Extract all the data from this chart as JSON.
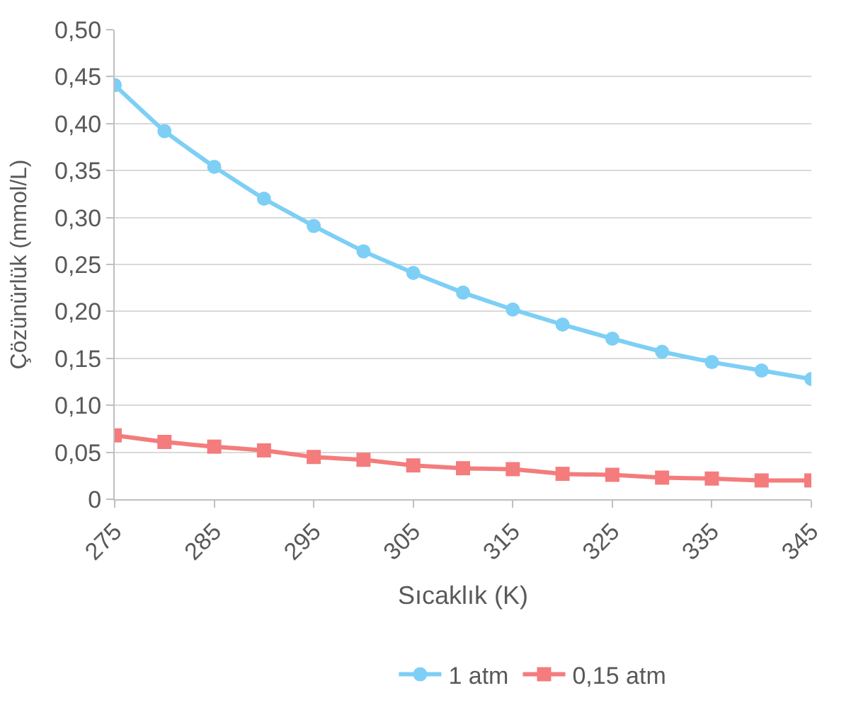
{
  "chart_data": {
    "type": "line",
    "xlabel": "Sıcaklık (K)",
    "ylabel": "Çözünürlük (mmol/L)",
    "x": [
      275,
      280,
      285,
      290,
      295,
      300,
      305,
      310,
      315,
      320,
      325,
      330,
      335,
      340,
      345
    ],
    "series": [
      {
        "name": "1 atm",
        "color": "#7dcff5",
        "marker": "circle",
        "values": [
          0.441,
          0.392,
          0.354,
          0.32,
          0.291,
          0.264,
          0.241,
          0.22,
          0.202,
          0.186,
          0.171,
          0.157,
          0.146,
          0.137,
          0.128
        ]
      },
      {
        "name": "0,15 atm",
        "color": "#f47c7c",
        "marker": "square",
        "values": [
          0.068,
          0.061,
          0.056,
          0.052,
          0.045,
          0.042,
          0.036,
          0.033,
          0.032,
          0.027,
          0.026,
          0.023,
          0.022,
          0.02,
          0.02
        ]
      }
    ],
    "xlim": [
      275,
      345
    ],
    "xticks": [
      275,
      285,
      295,
      305,
      315,
      325,
      335,
      345
    ],
    "ylim": [
      0,
      0.5
    ],
    "yticks": [
      {
        "value": 0,
        "label": "0"
      },
      {
        "value": 0.05,
        "label": "0,05"
      },
      {
        "value": 0.1,
        "label": "0,10"
      },
      {
        "value": 0.15,
        "label": "0,15"
      },
      {
        "value": 0.2,
        "label": "0,20"
      },
      {
        "value": 0.25,
        "label": "0,25"
      },
      {
        "value": 0.3,
        "label": "0,30"
      },
      {
        "value": 0.35,
        "label": "0,35"
      },
      {
        "value": 0.4,
        "label": "0,40"
      },
      {
        "value": 0.45,
        "label": "0,45"
      },
      {
        "value": 0.5,
        "label": "0,50"
      }
    ],
    "grid": "y",
    "legend": "bottom",
    "line_style": "solid"
  }
}
